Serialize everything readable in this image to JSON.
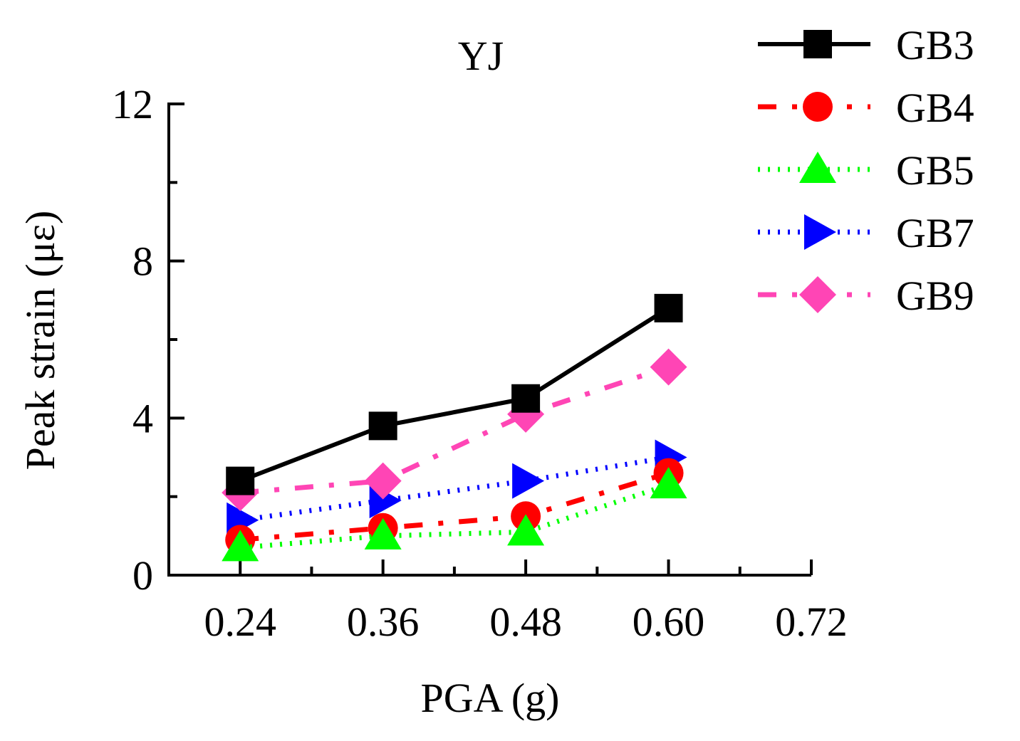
{
  "chart_data": {
    "type": "line",
    "title": "YJ",
    "xlabel": "PGA (g)",
    "ylabel": "Peak strain (με)",
    "x": [
      0.24,
      0.36,
      0.48,
      0.6
    ],
    "x_ticks": [
      "0.24",
      "0.36",
      "0.48",
      "0.60",
      "0.72"
    ],
    "x_tick_values": [
      0.24,
      0.36,
      0.48,
      0.6,
      0.72
    ],
    "xlim": [
      0.18,
      0.72
    ],
    "y_ticks": [
      "0",
      "4",
      "8",
      "12"
    ],
    "y_tick_values": [
      0,
      4,
      8,
      12
    ],
    "ylim": [
      0,
      12
    ],
    "grid": false,
    "legend_position": "top-right, outside plot",
    "series": [
      {
        "name": "GB3",
        "values": [
          2.4,
          3.8,
          4.5,
          6.8
        ],
        "color": "#000000",
        "marker": "square",
        "line": "solid"
      },
      {
        "name": "GB4",
        "values": [
          0.9,
          1.2,
          1.5,
          2.6
        ],
        "color": "#ff0000",
        "marker": "circle",
        "line": "dash-dot"
      },
      {
        "name": "GB5",
        "values": [
          0.7,
          1.0,
          1.1,
          2.3
        ],
        "color": "#00ff00",
        "marker": "triangle-up",
        "line": "dotted"
      },
      {
        "name": "GB7",
        "values": [
          1.4,
          1.9,
          2.4,
          3.0
        ],
        "color": "#0000ff",
        "marker": "triangle-right",
        "line": "dotted"
      },
      {
        "name": "GB9",
        "values": [
          2.1,
          2.4,
          4.1,
          5.3
        ],
        "color": "#ff45b5",
        "marker": "diamond",
        "line": "dash-dot"
      }
    ]
  }
}
